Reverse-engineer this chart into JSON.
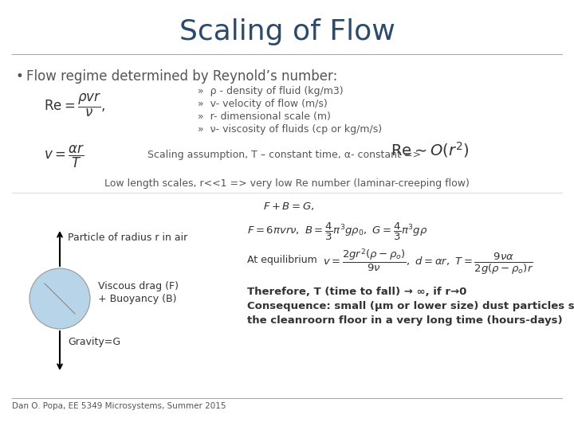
{
  "title": "Scaling of Flow",
  "title_color": "#2d4a6b",
  "title_fontsize": 26,
  "bg_color": "#ffffff",
  "bullet_text": "Flow regime determined by Reynold’s number:",
  "text_color": "#555555",
  "dark_color": "#333333",
  "sub_items": [
    "»  ρ - density of fluid (kg/m3)",
    "»  v- velocity of flow (m/s)",
    "»  r- dimensional scale (m)",
    "»  ν- viscosity of fluids (cp or kg/m/s)"
  ],
  "scaling_text": "Scaling assumption, T – constant time, α- constant =>",
  "low_length_text": "Low length scales, r<<1 => very low Re number (laminar-creeping flow)",
  "particle_text": "Particle of radius r in air",
  "viscous_text": "Viscous drag (F)",
  "buoyancy_text": "+ Buoyancy (B)",
  "at_eq_text": "At equilibrium",
  "gravity_text": "Gravity=G",
  "therefore_text": "Therefore, T (time to fall) → ∞, if r→0",
  "consequence_text1": "Consequence: small (μm or lower size) dust particles settle to",
  "consequence_text2": "the cleanroorn floor in a very long time (hours-days)",
  "footer_text": "Dan O. Popa, EE 5349 Microsystems, Summer 2015"
}
